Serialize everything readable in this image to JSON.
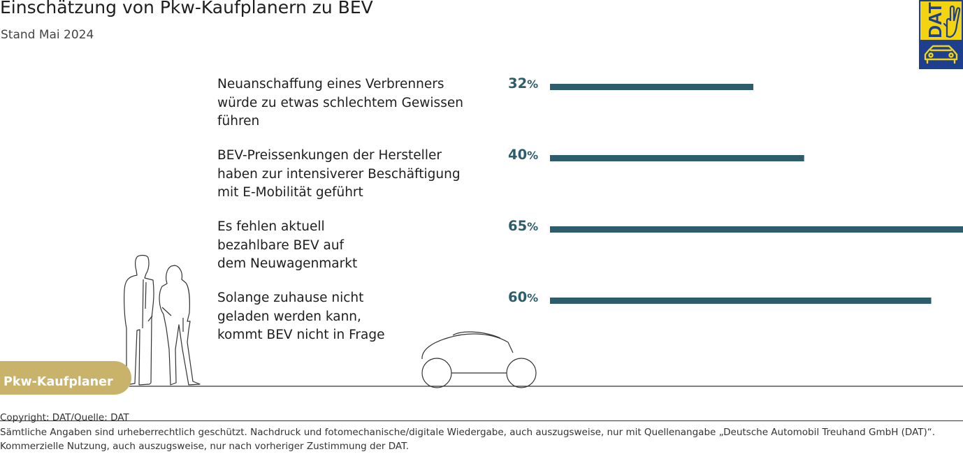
{
  "header": {
    "title": "Einschätzung von Pkw-Kaufplanern zu BEV",
    "subtitle": "Stand Mai 2024"
  },
  "logo": {
    "text": "DAT",
    "icon_names": [
      "hand-icon",
      "car-icon"
    ],
    "colors": {
      "yellow": "#f3d411",
      "blue": "#1e3f8e"
    }
  },
  "chart_data": {
    "type": "bar",
    "orientation": "horizontal",
    "categories": [
      "Neuanschaffung eines Verbrenners würde zu etwas schlechtem Gewissen führen",
      "BEV-Preissenkungen der Hersteller haben zur intensiverer Beschäftigung mit E-Mobilität geführt",
      "Es fehlen aktuell bezahlbare BEV auf dem Neuwagenmarkt",
      "Solange zuhause nicht geladen werden kann, kommt BEV nicht in Frage"
    ],
    "category_lines": [
      [
        "Neuanschaffung eines Verbrenners",
        "würde zu etwas schlechtem Gewissen",
        "führen"
      ],
      [
        "BEV-Preissenkungen der Hersteller",
        "haben zur intensiverer Beschäftigung",
        "mit E-Mobilität geführt"
      ],
      [
        "Es fehlen aktuell",
        "bezahlbare BEV auf",
        "dem Neuwagenmarkt"
      ],
      [
        "Solange zuhause nicht",
        "geladen werden kann,",
        "kommt BEV nicht in Frage"
      ]
    ],
    "values": [
      32,
      40,
      65,
      60
    ],
    "unit": "%",
    "xlim": [
      0,
      65
    ],
    "bar_color": "#2d5c6b",
    "label_color": "#2d5c6b"
  },
  "badge": {
    "label": "Pkw-Kaufplaner",
    "color": "#c9b26a"
  },
  "footer": {
    "copyright": "Copyright: DAT/Quelle: DAT",
    "line2": "Sämtliche Angaben sind urheberrechtlich geschützt. Nachdruck und fotomechanische/digitale Wiedergabe, auch auszugsweise, nur mit Quellenangabe „Deutsche Automobil Treuhand GmbH (DAT)“.",
    "line3": "Kommerzielle Nutzung, auch auszugsweise, nur nach vorheriger Zustimmung der DAT."
  }
}
